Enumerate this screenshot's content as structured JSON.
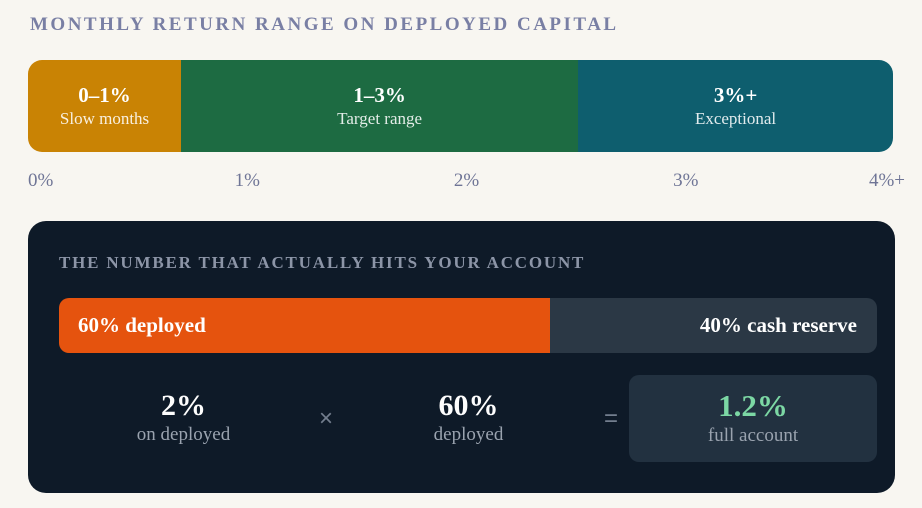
{
  "page": {
    "background": "#F8F6F1",
    "title": "MONTHLY RETURN RANGE ON DEPLOYED CAPITAL",
    "title_color": "#797FA4"
  },
  "chart_data": [
    {
      "type": "bar",
      "subtype": "horizontal-range-strip",
      "title": "Monthly return range on deployed capital",
      "axis_ticks": [
        "0%",
        "1%",
        "2%",
        "3%",
        "4%+"
      ],
      "axis_range": [
        0,
        4
      ],
      "tick_color": "#6F7596",
      "segments": [
        {
          "range": "0–1%",
          "label": "Slow months",
          "color": "#C98304",
          "width_pct": 17.7
        },
        {
          "range": "1–3%",
          "label": "Target range",
          "color": "#1D6B42",
          "width_pct": 45.9
        },
        {
          "range": "3%+",
          "label": "Exceptional",
          "color": "#0E5E6E",
          "width_pct": 36.4
        }
      ]
    },
    {
      "type": "bar",
      "subtype": "horizontal-allocation",
      "title": "Account allocation",
      "segments": [
        {
          "label": "60% deployed",
          "value_pct": 60,
          "color": "#E5530E"
        },
        {
          "label": "40% cash reserve",
          "value_pct": 40,
          "color": "#2B3845"
        }
      ]
    }
  ],
  "card": {
    "background": "#0E1A28",
    "title": "THE NUMBER THAT ACTUALLY HITS YOUR ACCOUNT",
    "title_color": "#8C95A7",
    "equation": {
      "term1": {
        "value": "2%",
        "caption": "on deployed"
      },
      "operator1": "×",
      "term2": {
        "value": "60%",
        "caption": "deployed"
      },
      "operator2": "=",
      "result": {
        "value": "1.2%",
        "caption": "full account",
        "value_color": "#7CD7A4",
        "box_color": "#223140"
      }
    }
  }
}
